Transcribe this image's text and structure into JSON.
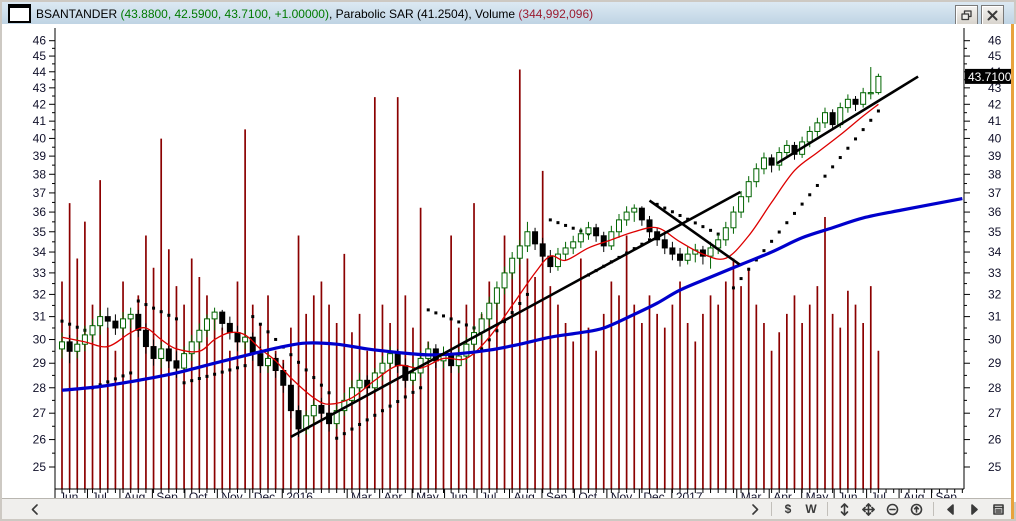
{
  "window": {
    "title_parts": [
      {
        "text": "BSANTANDER ",
        "color": "#000000"
      },
      {
        "text": "(43.8800, 42.5900, 43.7100, +1.00000)",
        "color": "#007a00"
      },
      {
        "text": ", Parabolic SAR (41.2504), Volume ",
        "color": "#000000"
      },
      {
        "text": "(344,992,096)",
        "color": "#9b1b30"
      }
    ],
    "buttons": [
      {
        "name": "restore-window-button",
        "glyph": "restore"
      },
      {
        "name": "close-window-button",
        "glyph": "close"
      }
    ]
  },
  "chart_data": {
    "type": "candlestick",
    "symbol": "BSANTANDER",
    "periodicity": "weekly",
    "title": "BSANTANDER (43.8800, 42.5900, 43.7100, +1.00000), Parabolic SAR (41.2504), Volume (344,992,096)",
    "last_quote": {
      "high": "43.8800",
      "low": "42.5900",
      "close": "43.7100",
      "change": "+1.00000"
    },
    "indicators": [
      "Parabolic SAR (41.2504)",
      "Volume (344,992,096)"
    ],
    "y_axis": {
      "min": 25,
      "max": 46,
      "step": 1,
      "scale": "log",
      "sides": "both"
    },
    "x_axis": {
      "month_labels": [
        "Jun",
        "Jul",
        "Aug",
        "Sep",
        "Oct",
        "Nov",
        "Dec",
        "2016",
        "",
        "Mar",
        "Apr",
        "May",
        "Jun",
        "Jul",
        "Aug",
        "Sep",
        "Oct",
        "Nov",
        "Dec",
        "2017",
        "",
        "Mar",
        "Apr",
        "May",
        "Jun",
        "Jul",
        "Aug",
        "Sep"
      ]
    },
    "price_marker": {
      "value": "43.7100",
      "price": 43.71
    },
    "colors": {
      "up_candle": "#006400",
      "down_candle": "#000000",
      "volume": "#8b0000",
      "ma_fast": "#dd0000",
      "ma_slow": "#0000cc",
      "trendline": "#000000",
      "sar_dot": "#000000",
      "axis": "#000000",
      "marker_bg": "#000000",
      "marker_text": "#ffffff"
    },
    "candles": [
      [
        29.6,
        30.3,
        29.2,
        29.9
      ],
      [
        29.9,
        30.2,
        29.0,
        29.5
      ],
      [
        29.5,
        30.1,
        29.2,
        29.8
      ],
      [
        29.8,
        30.6,
        29.5,
        30.2
      ],
      [
        30.2,
        30.9,
        29.9,
        30.6
      ],
      [
        30.6,
        31.3,
        30.2,
        31.0
      ],
      [
        31.0,
        31.4,
        30.5,
        30.8
      ],
      [
        30.8,
        31.1,
        30.2,
        30.5
      ],
      [
        30.5,
        31.2,
        30.2,
        30.9
      ],
      [
        30.9,
        31.4,
        30.5,
        31.1
      ],
      [
        31.1,
        31.3,
        30.1,
        30.4
      ],
      [
        30.4,
        30.7,
        29.4,
        29.7
      ],
      [
        29.7,
        30.0,
        28.9,
        29.2
      ],
      [
        29.2,
        29.9,
        28.8,
        29.6
      ],
      [
        29.6,
        29.8,
        28.8,
        29.1
      ],
      [
        29.1,
        29.5,
        28.4,
        28.8
      ],
      [
        28.8,
        29.7,
        28.6,
        29.4
      ],
      [
        29.4,
        30.2,
        29.1,
        29.9
      ],
      [
        29.9,
        30.7,
        29.6,
        30.4
      ],
      [
        30.4,
        31.1,
        30.1,
        30.9
      ],
      [
        30.9,
        31.4,
        30.4,
        31.2
      ],
      [
        31.2,
        31.3,
        30.4,
        30.7
      ],
      [
        30.7,
        31.0,
        30.0,
        30.3
      ],
      [
        30.3,
        30.6,
        29.5,
        29.9
      ],
      [
        29.9,
        30.4,
        29.6,
        30.1
      ],
      [
        30.1,
        30.3,
        29.1,
        29.4
      ],
      [
        29.4,
        29.7,
        28.6,
        28.9
      ],
      [
        28.9,
        29.5,
        28.6,
        29.2
      ],
      [
        29.2,
        29.4,
        28.4,
        28.7
      ],
      [
        28.7,
        29.0,
        27.8,
        28.1
      ],
      [
        28.1,
        28.3,
        26.8,
        27.1
      ],
      [
        27.1,
        27.3,
        26.1,
        26.4
      ],
      [
        26.4,
        27.1,
        26.2,
        26.9
      ],
      [
        26.9,
        27.5,
        26.6,
        27.3
      ],
      [
        27.3,
        27.6,
        26.7,
        27.0
      ],
      [
        27.0,
        27.4,
        26.3,
        26.6
      ],
      [
        26.6,
        27.3,
        26.4,
        27.1
      ],
      [
        27.1,
        27.8,
        26.9,
        27.5
      ],
      [
        27.5,
        28.3,
        27.3,
        28.0
      ],
      [
        28.0,
        28.6,
        27.7,
        28.3
      ],
      [
        28.3,
        28.5,
        27.7,
        28.0
      ],
      [
        28.0,
        28.8,
        27.8,
        28.6
      ],
      [
        28.6,
        29.3,
        28.3,
        29.0
      ],
      [
        29.0,
        29.7,
        28.7,
        29.4
      ],
      [
        29.4,
        29.6,
        28.6,
        28.9
      ],
      [
        28.9,
        29.2,
        28.0,
        28.3
      ],
      [
        28.3,
        29.0,
        28.1,
        28.6
      ],
      [
        28.6,
        29.5,
        28.4,
        29.2
      ],
      [
        29.2,
        29.9,
        28.9,
        29.6
      ],
      [
        29.6,
        29.8,
        28.8,
        29.1
      ],
      [
        29.1,
        29.7,
        28.8,
        29.4
      ],
      [
        29.4,
        29.6,
        28.6,
        28.9
      ],
      [
        28.9,
        29.6,
        28.6,
        29.3
      ],
      [
        29.3,
        30.1,
        29.0,
        29.8
      ],
      [
        29.8,
        30.6,
        29.5,
        30.3
      ],
      [
        30.3,
        31.2,
        30.0,
        30.9
      ],
      [
        30.9,
        31.9,
        30.6,
        31.6
      ],
      [
        31.6,
        32.6,
        31.3,
        32.3
      ],
      [
        32.3,
        33.3,
        32.0,
        33.0
      ],
      [
        33.0,
        34.0,
        32.7,
        33.7
      ],
      [
        33.7,
        34.6,
        33.4,
        34.3
      ],
      [
        34.3,
        35.5,
        34.0,
        35.0
      ],
      [
        35.0,
        35.2,
        34.1,
        34.4
      ],
      [
        34.4,
        34.7,
        33.5,
        33.8
      ],
      [
        33.8,
        34.1,
        33.0,
        33.3
      ],
      [
        33.3,
        34.2,
        33.1,
        33.9
      ],
      [
        33.9,
        34.5,
        33.6,
        34.2
      ],
      [
        34.2,
        34.8,
        33.9,
        34.5
      ],
      [
        34.5,
        35.2,
        34.2,
        34.9
      ],
      [
        34.9,
        35.5,
        34.6,
        35.2
      ],
      [
        35.2,
        35.4,
        34.5,
        34.8
      ],
      [
        34.8,
        35.0,
        34.0,
        34.3
      ],
      [
        34.3,
        35.3,
        34.1,
        35.0
      ],
      [
        35.0,
        35.9,
        34.7,
        35.6
      ],
      [
        35.6,
        36.3,
        35.3,
        36.0
      ],
      [
        36.0,
        36.4,
        35.5,
        36.2
      ],
      [
        36.2,
        36.3,
        35.3,
        35.6
      ],
      [
        35.6,
        35.8,
        34.7,
        35.0
      ],
      [
        35.0,
        35.2,
        34.3,
        34.6
      ],
      [
        34.6,
        34.9,
        33.9,
        34.2
      ],
      [
        34.2,
        34.5,
        33.6,
        33.9
      ],
      [
        33.9,
        34.2,
        33.3,
        33.6
      ],
      [
        33.6,
        34.3,
        33.4,
        33.9
      ],
      [
        33.9,
        34.4,
        33.5,
        34.1
      ],
      [
        34.1,
        34.3,
        33.4,
        33.8
      ],
      [
        33.8,
        34.5,
        33.2,
        34.2
      ],
      [
        34.2,
        34.9,
        33.9,
        34.6
      ],
      [
        34.6,
        35.5,
        34.3,
        35.2
      ],
      [
        35.2,
        36.3,
        34.9,
        36.0
      ],
      [
        36.0,
        37.1,
        35.7,
        36.8
      ],
      [
        36.8,
        37.9,
        36.5,
        37.6
      ],
      [
        37.6,
        38.6,
        37.3,
        38.3
      ],
      [
        38.3,
        39.2,
        38.0,
        38.9
      ],
      [
        38.9,
        39.1,
        38.1,
        38.5
      ],
      [
        38.5,
        39.5,
        38.2,
        39.2
      ],
      [
        39.2,
        39.9,
        38.9,
        39.6
      ],
      [
        39.6,
        39.8,
        38.8,
        39.1
      ],
      [
        39.1,
        40.1,
        38.9,
        39.8
      ],
      [
        39.8,
        40.7,
        39.5,
        40.4
      ],
      [
        40.4,
        41.2,
        40.1,
        40.9
      ],
      [
        40.9,
        41.8,
        40.6,
        41.5
      ],
      [
        41.5,
        41.7,
        40.5,
        40.8
      ],
      [
        40.8,
        42.1,
        40.6,
        41.8
      ],
      [
        41.8,
        42.6,
        41.5,
        42.3
      ],
      [
        42.3,
        42.5,
        41.6,
        42.0
      ],
      [
        42.0,
        43.0,
        41.8,
        42.7
      ],
      [
        42.7,
        44.3,
        42.3,
        42.71
      ],
      [
        42.71,
        43.88,
        42.59,
        43.71
      ]
    ],
    "volume_rel": [
      0.45,
      0.62,
      0.5,
      0.58,
      0.4,
      0.67,
      0.35,
      0.3,
      0.45,
      0.38,
      0.42,
      0.55,
      0.48,
      0.76,
      0.52,
      0.44,
      0.4,
      0.5,
      0.46,
      0.42,
      0.38,
      0.35,
      0.3,
      0.45,
      0.78,
      0.4,
      0.36,
      0.42,
      0.3,
      0.28,
      0.35,
      0.55,
      0.38,
      0.42,
      0.45,
      0.4,
      0.36,
      0.51,
      0.34,
      0.38,
      0.3,
      0.85,
      0.4,
      0.36,
      0.85,
      0.42,
      0.35,
      0.61,
      0.32,
      0.3,
      0.28,
      0.55,
      0.35,
      0.4,
      0.62,
      0.38,
      0.45,
      0.42,
      0.55,
      0.48,
      0.91,
      0.5,
      0.46,
      0.69,
      0.44,
      0.4,
      0.36,
      0.32,
      0.5,
      0.35,
      0.3,
      0.38,
      0.45,
      0.42,
      0.55,
      0.4,
      0.36,
      0.42,
      0.38,
      0.35,
      0.4,
      0.45,
      0.36,
      0.32,
      0.38,
      0.42,
      0.4,
      0.45,
      0.5,
      0.44,
      0.48,
      0.4,
      0.36,
      0.3,
      0.34,
      0.38,
      0.42,
      0.36,
      0.4,
      0.44,
      0.59,
      0.38,
      0.35,
      0.43,
      0.4,
      0.36,
      0.44,
      0.3
    ],
    "ma_fast": {
      "name": "MA fast",
      "points": [
        [
          0,
          30.1
        ],
        [
          3,
          29.9
        ],
        [
          6,
          29.7
        ],
        [
          9,
          30.3
        ],
        [
          11,
          30.5
        ],
        [
          13,
          30.0
        ],
        [
          15,
          29.6
        ],
        [
          18,
          29.5
        ],
        [
          20,
          30.0
        ],
        [
          22,
          30.3
        ],
        [
          24,
          30.2
        ],
        [
          26,
          29.6
        ],
        [
          28,
          29.1
        ],
        [
          30,
          28.4
        ],
        [
          33,
          27.6
        ],
        [
          35,
          27.35
        ],
        [
          38,
          27.6
        ],
        [
          41,
          28.3
        ],
        [
          44,
          28.9
        ],
        [
          47,
          28.8
        ],
        [
          50,
          29.2
        ],
        [
          53,
          29.2
        ],
        [
          56,
          30.1
        ],
        [
          59,
          31.5
        ],
        [
          62,
          33.0
        ],
        [
          64,
          33.8
        ],
        [
          66,
          33.6
        ],
        [
          69,
          34.2
        ],
        [
          72,
          34.6
        ],
        [
          75,
          35.0
        ],
        [
          78,
          35.2
        ],
        [
          81,
          34.5
        ],
        [
          84,
          33.9
        ],
        [
          87,
          33.7
        ],
        [
          90,
          34.8
        ],
        [
          93,
          36.5
        ],
        [
          96,
          38.2
        ],
        [
          99,
          39.2
        ],
        [
          102,
          40.2
        ],
        [
          105,
          41.3
        ],
        [
          107,
          42.0
        ]
      ]
    },
    "ma_slow": {
      "name": "MA slow",
      "points": [
        [
          0,
          27.9
        ],
        [
          5,
          28.05
        ],
        [
          10,
          28.3
        ],
        [
          15,
          28.6
        ],
        [
          20,
          29.0
        ],
        [
          25,
          29.4
        ],
        [
          29,
          29.7
        ],
        [
          32,
          29.85
        ],
        [
          36,
          29.8
        ],
        [
          40,
          29.6
        ],
        [
          44,
          29.45
        ],
        [
          48,
          29.35
        ],
        [
          52,
          29.4
        ],
        [
          56,
          29.55
        ],
        [
          60,
          29.8
        ],
        [
          64,
          30.1
        ],
        [
          68,
          30.3
        ],
        [
          71,
          30.5
        ],
        [
          75,
          31.1
        ],
        [
          78,
          31.6
        ],
        [
          81,
          32.2
        ],
        [
          85,
          32.8
        ],
        [
          89,
          33.4
        ],
        [
          93,
          34.0
        ],
        [
          97,
          34.7
        ],
        [
          101,
          35.2
        ],
        [
          105,
          35.7
        ],
        [
          110,
          36.1
        ],
        [
          114,
          36.4
        ],
        [
          118,
          36.7
        ]
      ]
    },
    "sar_segments": [
      [
        1,
        0,
        30.8,
        3,
        30.4
      ],
      [
        -1,
        4,
        28.0,
        9,
        28.6
      ],
      [
        1,
        10,
        31.7,
        15,
        30.9
      ],
      [
        -1,
        16,
        28.2,
        24,
        28.9
      ],
      [
        1,
        25,
        31.0,
        35,
        27.8
      ],
      [
        -1,
        36,
        26.05,
        47,
        28.0
      ],
      [
        1,
        48,
        31.3,
        54,
        30.5
      ],
      [
        -1,
        55,
        29.6,
        61,
        32.0
      ],
      [
        1,
        64,
        35.6,
        69,
        34.9
      ],
      [
        -1,
        69,
        32.9,
        77,
        34.6
      ],
      [
        1,
        78,
        36.4,
        87,
        34.7
      ],
      [
        -1,
        88,
        32.3,
        107,
        41.6
      ]
    ],
    "trendlines": [
      {
        "w1": 30,
        "p1": 26.1,
        "w2": 88.9,
        "p2": 37.05
      },
      {
        "w1": 77,
        "p1": 36.6,
        "w2": 88.8,
        "p2": 33.4
      },
      {
        "w1": 93.7,
        "p1": 38.6,
        "w2": 112.2,
        "p2": 43.7
      }
    ]
  },
  "toolbar": {
    "scroll_left": {
      "name": "scroll-left-button",
      "glyph": "chevron-left"
    },
    "scroll_right": {
      "name": "scroll-right-button",
      "glyph": "chevron-right"
    },
    "groups": [
      [
        {
          "name": "currency-button",
          "glyph": "text",
          "label": "$"
        },
        {
          "name": "periodicity-weekly-button",
          "glyph": "text",
          "label": "W"
        }
      ],
      [
        {
          "name": "fit-vertical-icon",
          "glyph": "fit-vertical"
        },
        {
          "name": "pan-icon",
          "glyph": "pan"
        },
        {
          "name": "zoom-out-icon",
          "glyph": "zoom-out"
        },
        {
          "name": "zoom-in-icon",
          "glyph": "zoom-in"
        }
      ],
      [
        {
          "name": "prev-arrow-icon",
          "glyph": "prev"
        },
        {
          "name": "next-arrow-icon",
          "glyph": "next"
        },
        {
          "name": "data-window-icon",
          "glyph": "panel"
        }
      ]
    ]
  }
}
